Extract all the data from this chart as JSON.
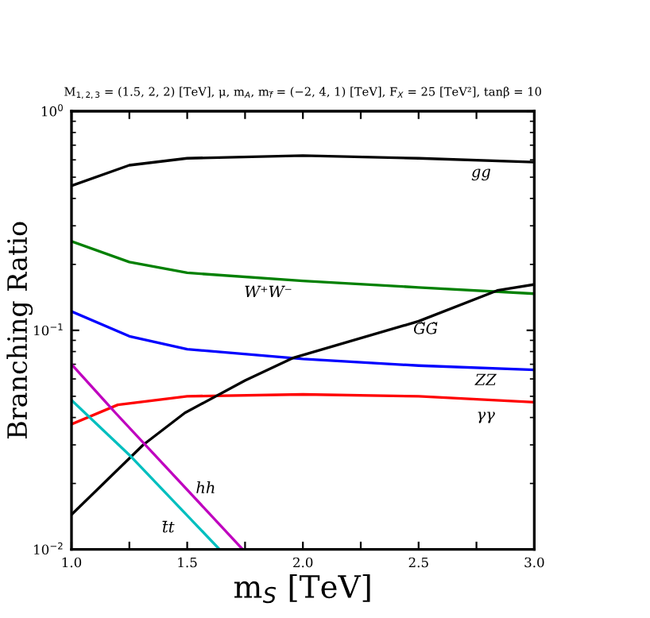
{
  "chart_data": {
    "type": "line",
    "title": "M$_{1,2,3}$ = (1.5, 2, 2) [TeV], μ, m$_{A}$, m$_{f̃}$ = (−2, 4, 1) [TeV], F$_{X}$ = 25 [TeV²], tanβ = 10",
    "xlabel": "m$_{S}$ [TeV]",
    "ylabel": "Branching Ratio",
    "log": "y",
    "xlim": [
      1.0,
      3.0
    ],
    "ylim": [
      0.01,
      1
    ],
    "xticks": [
      {
        "value": 1.0,
        "label": "1.0"
      },
      {
        "value": 1.25,
        "label": null
      },
      {
        "value": 1.5,
        "label": "1.5"
      },
      {
        "value": 1.75,
        "label": null
      },
      {
        "value": 2.0,
        "label": "2.0"
      },
      {
        "value": 2.25,
        "label": null
      },
      {
        "value": 2.5,
        "label": "2.5"
      },
      {
        "value": 2.75,
        "label": null
      },
      {
        "value": 3.0,
        "label": "3.0"
      }
    ],
    "yticks": [
      {
        "value": 0.01,
        "label": "10$^{−2}$"
      },
      {
        "value": 0.1,
        "label": "10$^{−1}$"
      },
      {
        "value": 1,
        "label": "10$^{0}$"
      }
    ],
    "grid": false,
    "legend": false,
    "series": [
      {
        "color": "#000000",
        "x": [
          1.0,
          1.25,
          1.5,
          2.0,
          2.5,
          3.0
        ],
        "values": [
          0.457,
          0.567,
          0.61,
          0.627,
          0.61,
          0.586
        ]
      },
      {
        "color": "#008000",
        "x": [
          1.0,
          1.25,
          1.5,
          2.0,
          2.5,
          3.0
        ],
        "values": [
          0.255,
          0.205,
          0.183,
          0.168,
          0.157,
          0.147
        ]
      },
      {
        "color": "#0000ff",
        "x": [
          1.0,
          1.25,
          1.5,
          2.0,
          2.5,
          3.0
        ],
        "values": [
          0.122,
          0.094,
          0.082,
          0.074,
          0.069,
          0.066
        ]
      },
      {
        "color": "#ff0000",
        "x": [
          1.0,
          1.2,
          1.5,
          2.0,
          2.5,
          3.0
        ],
        "values": [
          0.0373,
          0.0457,
          0.05,
          0.051,
          0.05,
          0.047
        ]
      },
      {
        "color": "#000000",
        "x": [
          1.0,
          1.31,
          1.49,
          1.75,
          1.96,
          2.5,
          2.84,
          3.0
        ],
        "values": [
          0.0144,
          0.03,
          0.042,
          0.059,
          0.075,
          0.11,
          0.152,
          0.162
        ]
      },
      {
        "color": "#00bfbf",
        "x": [
          1.0,
          1.25,
          1.64
        ],
        "values": [
          0.048,
          0.027,
          0.01
        ]
      },
      {
        "color": "#bf00bf",
        "x": [
          1.0,
          1.19,
          1.74
        ],
        "values": [
          0.07,
          0.042,
          0.01
        ]
      }
    ],
    "annotations": [
      {
        "text": "gg",
        "x": 2.77,
        "y": 0.597
      },
      {
        "text": "W⁺W⁻",
        "x": 1.85,
        "y": 0.1723
      },
      {
        "text": "G̃G̃",
        "x": 2.53,
        "y": 0.1132
      },
      {
        "text": "ZZ",
        "x": 2.79,
        "y": 0.0672
      },
      {
        "text": "γγ",
        "x": 2.79,
        "y": 0.0482
      },
      {
        "text": "hh",
        "x": 1.58,
        "y": 0.0152
      },
      {
        "text": "t̄t",
        "x": 1.48,
        "y": 0.01503
      }
    ]
  }
}
